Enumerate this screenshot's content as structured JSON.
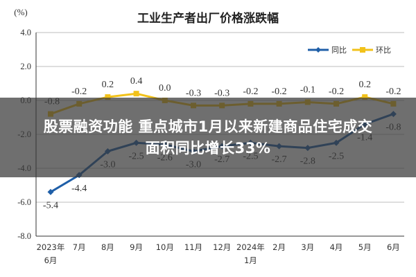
{
  "headline": {
    "line1": "股票融资功能 重点城市1月以来新建商品住宅成交",
    "line2": "面积同比增长33%"
  },
  "colors": {
    "yoy": "#1f5fa8",
    "mom": "#f2c21a",
    "grid": "#bdbdbd",
    "axis": "#333333",
    "overlay": "rgba(55,55,55,0.72)"
  },
  "chart_data": {
    "type": "line",
    "title": "工业生产者出厂价格涨跌幅",
    "ylabel": "(%)",
    "ylim": [
      -8.0,
      4.0
    ],
    "yticks": [
      {
        "value": 4.0,
        "label": "4.0"
      },
      {
        "value": 2.0,
        "label": "2.0"
      },
      {
        "value": 0.0,
        "label": "0.0"
      },
      {
        "value": -2.0,
        "label": "-2.0"
      },
      {
        "value": -4.0,
        "label": "-4.0"
      },
      {
        "value": -6.0,
        "label": "-6.0"
      },
      {
        "value": -8.0,
        "label": "-8.0"
      }
    ],
    "grid": true,
    "legend_position": "top-right",
    "categories": [
      [
        "2023年",
        "6月"
      ],
      [
        "7月"
      ],
      [
        "8月"
      ],
      [
        "9月"
      ],
      [
        "10月"
      ],
      [
        "11月"
      ],
      [
        "12月"
      ],
      [
        "2024年",
        "1月"
      ],
      [
        "2月"
      ],
      [
        "3月"
      ],
      [
        "4月"
      ],
      [
        "5月"
      ],
      [
        "6月"
      ]
    ],
    "series": [
      {
        "name": "同比",
        "color": "#1f5fa8",
        "values": [
          -5.4,
          -4.4,
          -3.0,
          -2.5,
          -2.6,
          -3.0,
          -2.7,
          -2.5,
          -2.7,
          -2.8,
          -2.5,
          -1.4,
          -0.8
        ],
        "labels": [
          "-5.4",
          "-4.4",
          "-3.0",
          "-2.5",
          "-2.6",
          "-3.0",
          "-2.7",
          "-2.5",
          "-2.7",
          "-2.8",
          "-2.5",
          "-1.4",
          "-0.8"
        ]
      },
      {
        "name": "环比",
        "color": "#f2c21a",
        "values": [
          -0.8,
          -0.2,
          0.2,
          0.4,
          0.0,
          -0.3,
          -0.3,
          -0.2,
          -0.2,
          -0.1,
          -0.2,
          0.2,
          -0.2
        ],
        "labels": [
          "-0.8",
          "-0.2",
          "0.2",
          "0.4",
          "0.0",
          "-0.3",
          "-0.3",
          "-0.2",
          "-0.2",
          "-0.1",
          "-0.2",
          "0.2",
          "-0.2"
        ]
      }
    ]
  }
}
